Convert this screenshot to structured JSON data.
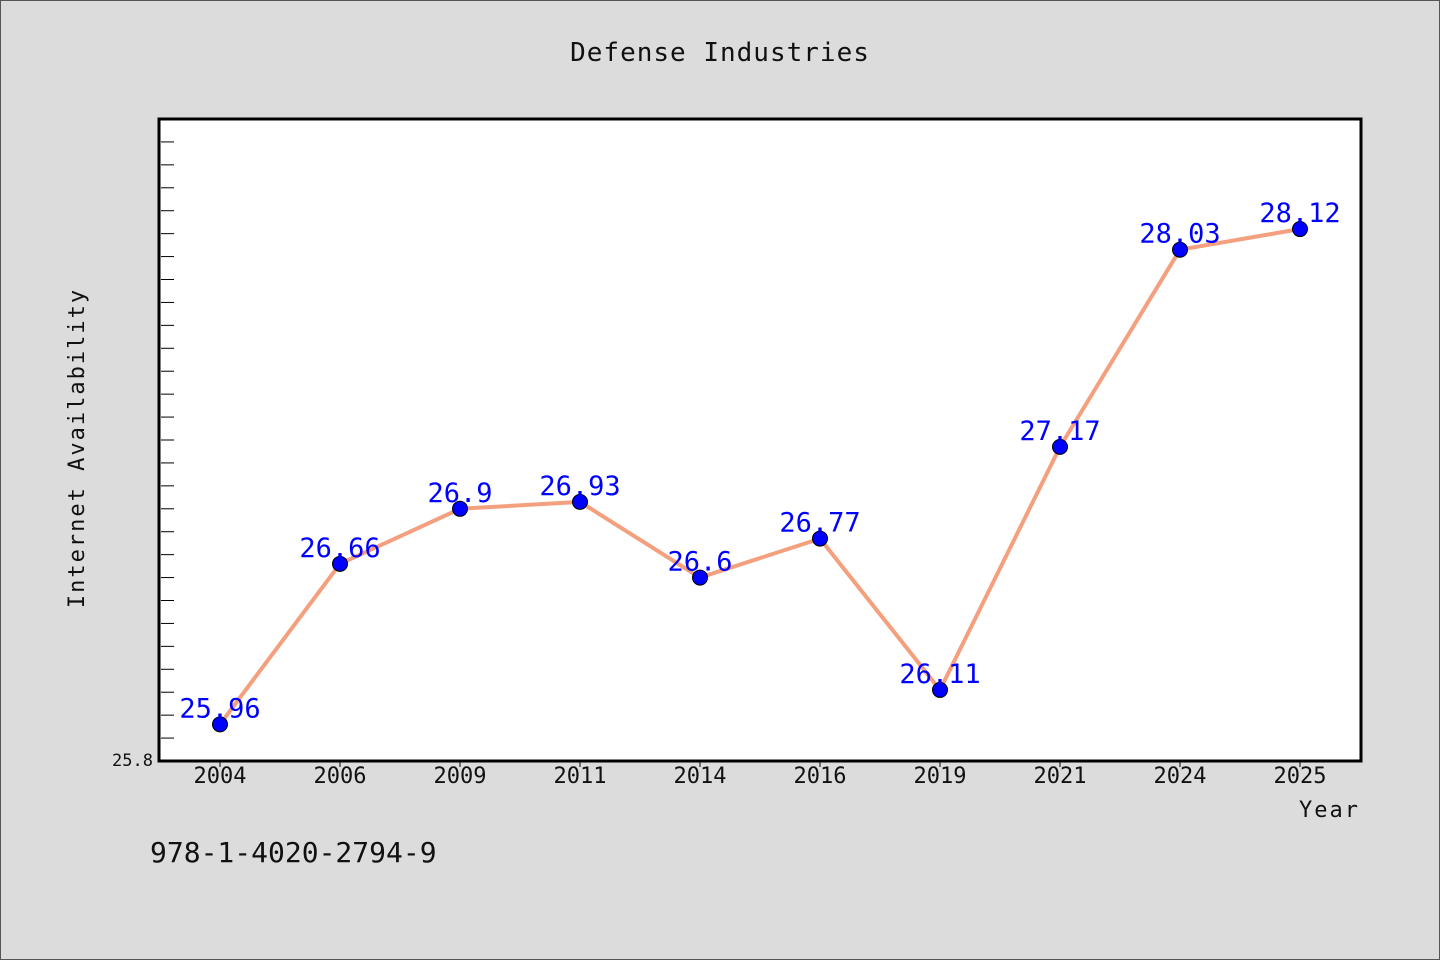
{
  "chart_data": {
    "type": "line",
    "title": "Defense Industries",
    "xlabel": "Year",
    "ylabel": "Internet Availability",
    "categories": [
      "2004",
      "2006",
      "2009",
      "2011",
      "2014",
      "2016",
      "2019",
      "2021",
      "2024",
      "2025"
    ],
    "series": [
      {
        "values": [
          25.96,
          26.66,
          26.9,
          26.93,
          26.6,
          26.77,
          26.11,
          27.17,
          28.03,
          28.12
        ]
      }
    ],
    "data_labels": [
      "25.96",
      "26.66",
      "26.9",
      "26.93",
      "26.6",
      "26.77",
      "26.11",
      "27.17",
      "28.03",
      "28.12"
    ],
    "y_tick_label": "25.8",
    "ylim": [
      25.8,
      28.6
    ],
    "grid": false,
    "colors": {
      "line": "#f4a07e",
      "marker": "#0000ff",
      "data_label": "#0000ff",
      "plot_background": "#ffffff",
      "figure_background": "#dcdcdc"
    }
  },
  "footer": {
    "isbn": "978-1-4020-2794-9"
  }
}
